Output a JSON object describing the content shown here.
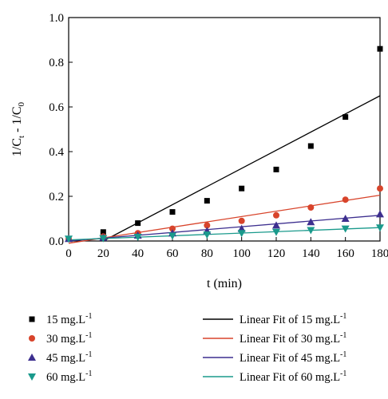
{
  "chart_data": {
    "type": "scatter",
    "xlabel": "t (min)",
    "ylabel": {
      "base": "1/C",
      "sub1": "t",
      "mid": " - 1/C",
      "sub2": "0"
    },
    "xlim": [
      0,
      180
    ],
    "ylim": [
      0,
      1.0
    ],
    "xticks": [
      0,
      20,
      40,
      60,
      80,
      100,
      120,
      140,
      160,
      180
    ],
    "yticks": [
      0.0,
      0.2,
      0.4,
      0.6,
      0.8,
      1.0
    ],
    "ytick_labels": [
      "0.0",
      "0.2",
      "0.4",
      "0.6",
      "0.8",
      "1.0"
    ],
    "grid": false,
    "legend_position": "bottom",
    "series": [
      {
        "name": "15 mg.L",
        "name_sup": "-1",
        "marker": "square",
        "color": "#000000",
        "x": [
          0,
          20,
          40,
          60,
          80,
          100,
          120,
          140,
          160,
          180
        ],
        "y": [
          0.01,
          0.04,
          0.08,
          0.13,
          0.18,
          0.235,
          0.32,
          0.425,
          0.555,
          0.86
        ],
        "fit": {
          "name": "Linear Fit of 15 mg.L",
          "name_sup": "-1",
          "color": "#000000",
          "x": [
            20,
            180
          ],
          "y": [
            0.0,
            0.65
          ]
        }
      },
      {
        "name": "30 mg.L",
        "name_sup": "-1",
        "marker": "circle",
        "color": "#d8442b",
        "x": [
          0,
          20,
          40,
          60,
          80,
          100,
          120,
          140,
          160,
          180
        ],
        "y": [
          0.01,
          0.02,
          0.035,
          0.055,
          0.07,
          0.09,
          0.115,
          0.15,
          0.185,
          0.235
        ],
        "fit": {
          "name": "Linear Fit of 30 mg.L",
          "name_sup": "-1",
          "color": "#d8442b",
          "x": [
            0,
            180
          ],
          "y": [
            -0.01,
            0.205
          ]
        }
      },
      {
        "name": "45 mg.L",
        "name_sup": "-1",
        "marker": "triangle-up",
        "color": "#3d2f8f",
        "x": [
          0,
          20,
          40,
          60,
          80,
          100,
          120,
          140,
          160,
          180
        ],
        "y": [
          0.01,
          0.015,
          0.025,
          0.035,
          0.045,
          0.055,
          0.07,
          0.085,
          0.1,
          0.12
        ],
        "fit": {
          "name": "Linear Fit of 45 mg.L",
          "name_sup": "-1",
          "color": "#3d2f8f",
          "x": [
            0,
            180
          ],
          "y": [
            0.0,
            0.115
          ]
        }
      },
      {
        "name": "60 mg.L",
        "name_sup": "-1",
        "marker": "triangle-down",
        "color": "#1a9a8c",
        "x": [
          0,
          20,
          40,
          60,
          80,
          100,
          120,
          140,
          160,
          180
        ],
        "y": [
          0.01,
          0.012,
          0.018,
          0.023,
          0.028,
          0.035,
          0.04,
          0.048,
          0.055,
          0.06
        ],
        "fit": {
          "name": "Linear Fit of 60 mg.L",
          "name_sup": "-1",
          "color": "#1a9a8c",
          "x": [
            0,
            180
          ],
          "y": [
            0.005,
            0.06
          ]
        }
      }
    ]
  }
}
